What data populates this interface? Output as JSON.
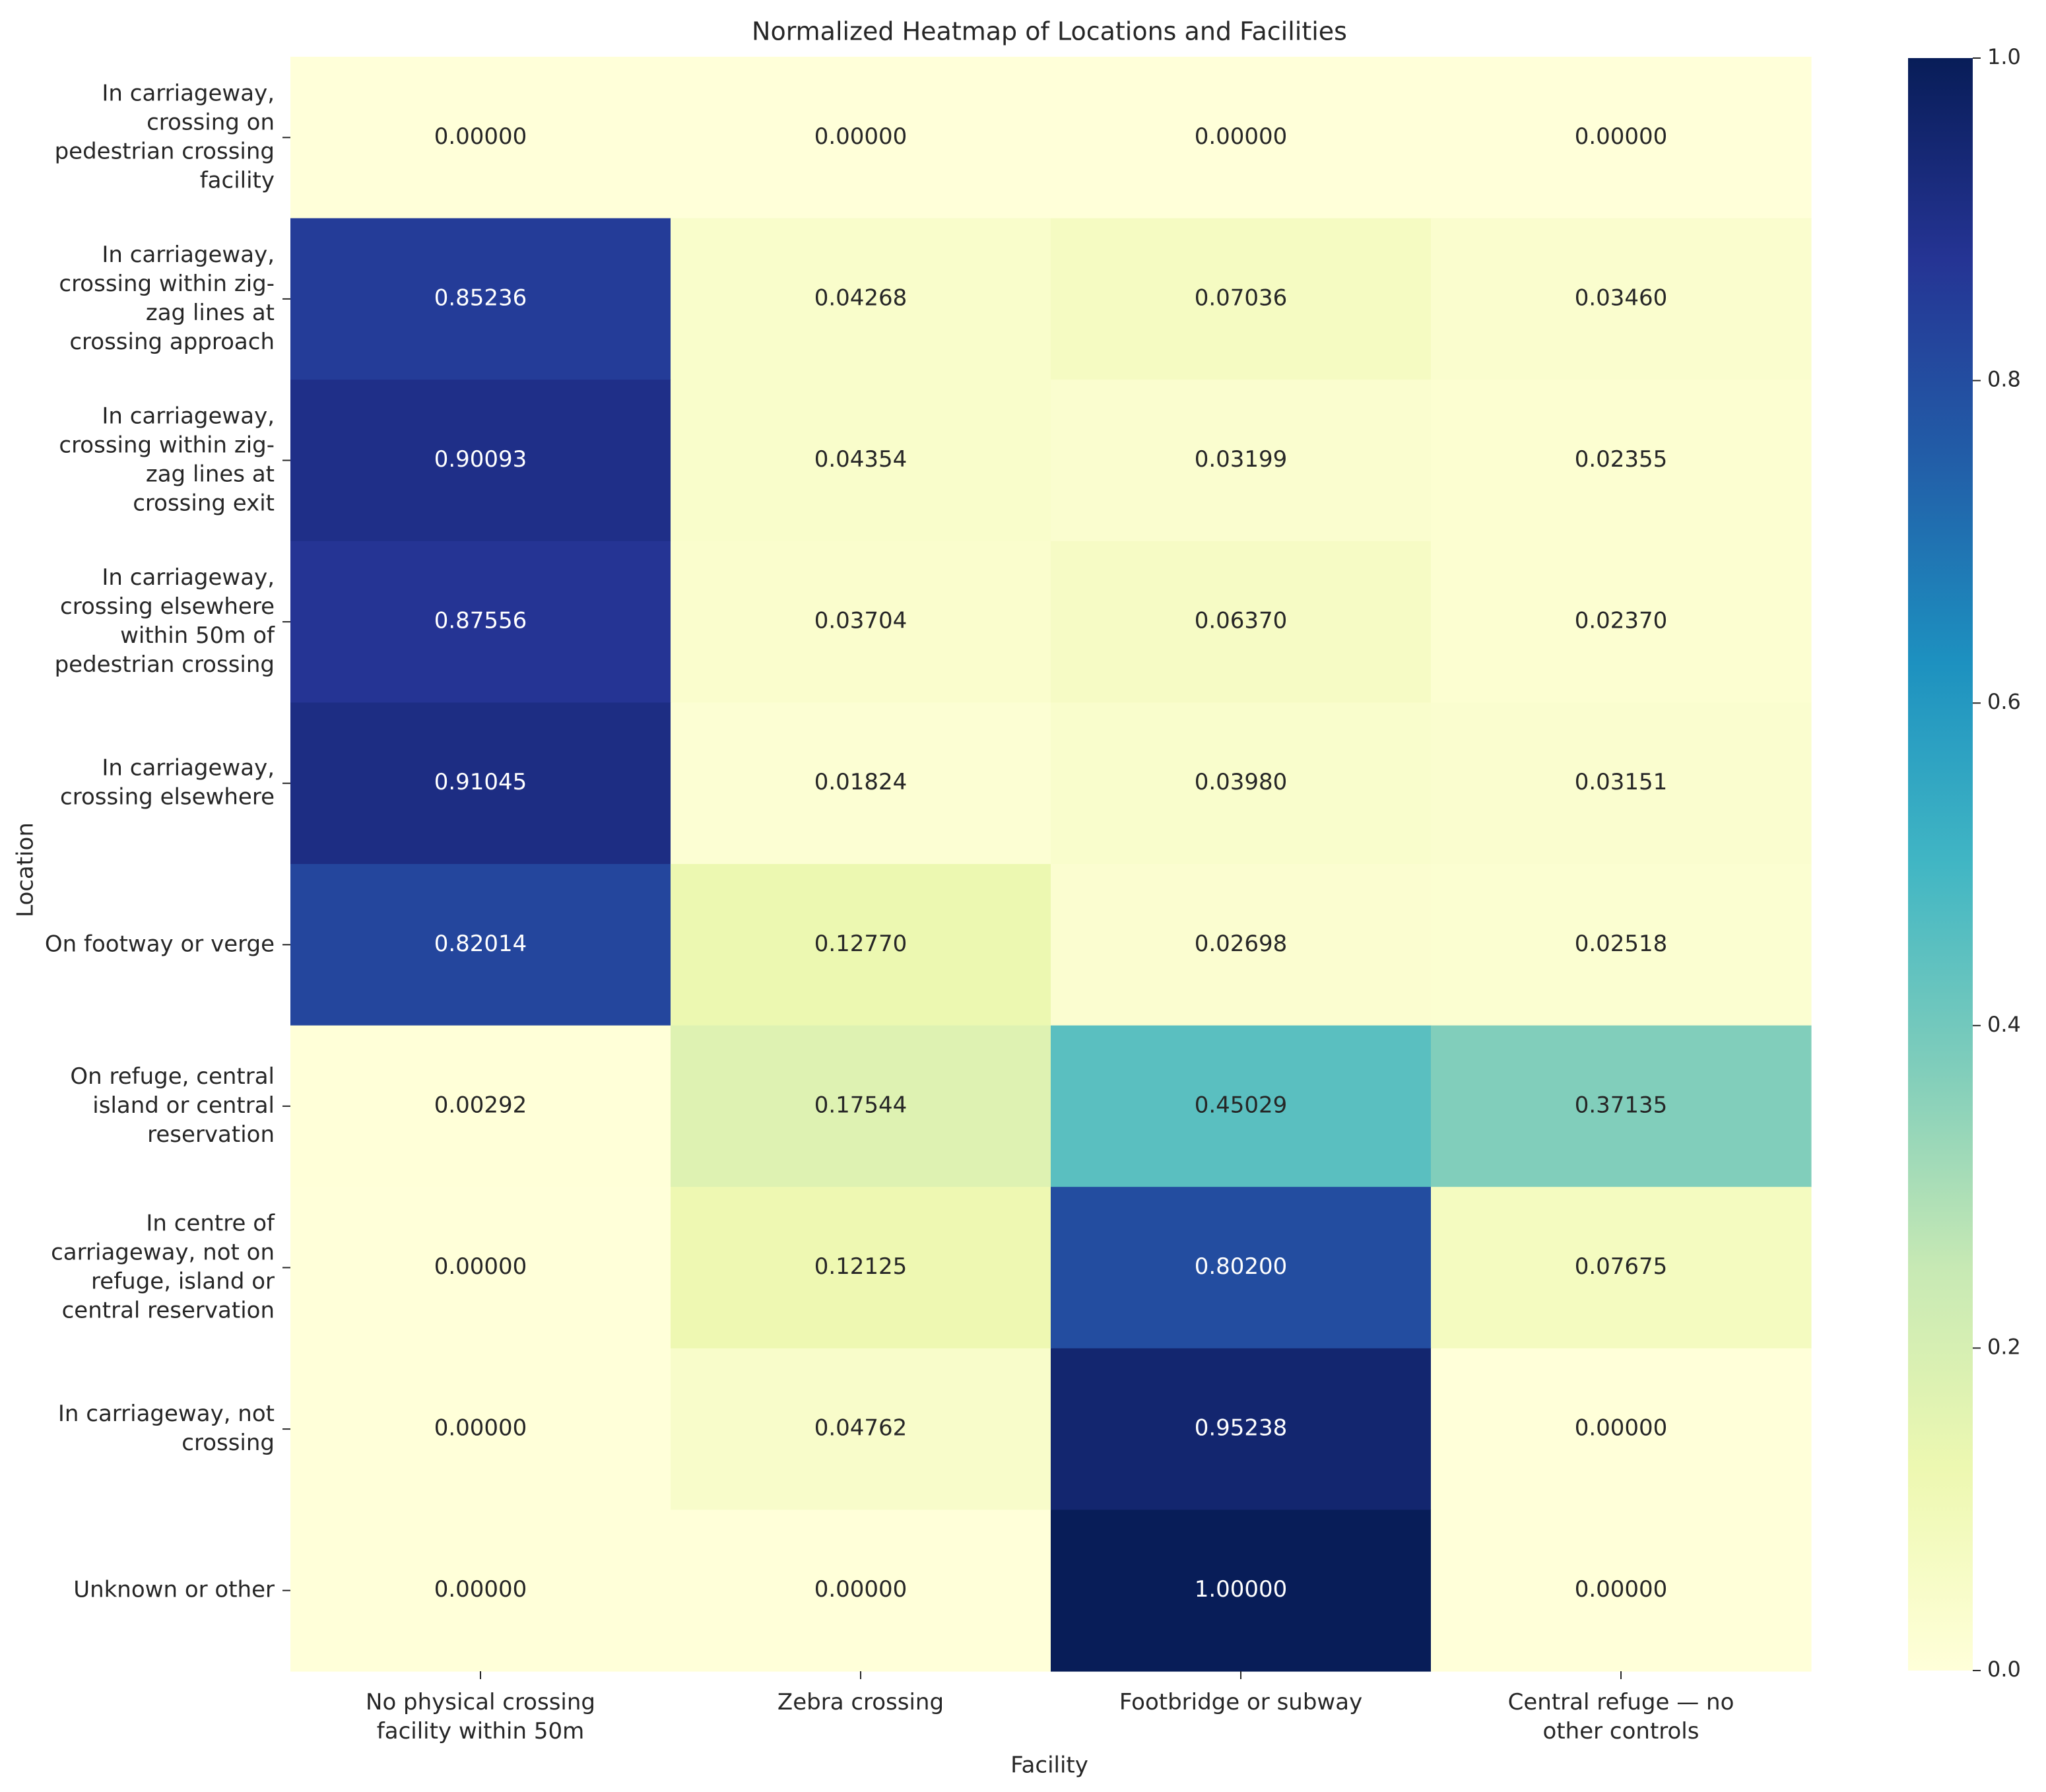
{
  "chart_data": {
    "type": "heatmap",
    "title": "Normalized Heatmap of Locations and Facilities",
    "xlabel": "Facility",
    "ylabel": "Location",
    "columns": [
      [
        "No physical crossing",
        "facility within 50m"
      ],
      [
        "Zebra crossing"
      ],
      [
        "Footbridge or subway"
      ],
      [
        "Central refuge — no",
        "other controls"
      ]
    ],
    "rows": [
      [
        "In carriageway,",
        "crossing on",
        "pedestrian crossing",
        "facility"
      ],
      [
        "In carriageway,",
        "crossing within zig-",
        "zag lines at",
        "crossing approach"
      ],
      [
        "In carriageway,",
        "crossing within zig-",
        "zag lines at",
        "crossing exit"
      ],
      [
        "In carriageway,",
        "crossing elsewhere",
        "within 50m of",
        "pedestrian crossing"
      ],
      [
        "In carriageway,",
        "crossing elsewhere"
      ],
      [
        "On footway or verge"
      ],
      [
        "On refuge, central",
        "island or central",
        "reservation"
      ],
      [
        "In centre of",
        "carriageway, not on",
        "refuge, island or",
        "central reservation"
      ],
      [
        "In carriageway, not",
        "crossing"
      ],
      [
        "Unknown or other"
      ]
    ],
    "values": [
      [
        0.0,
        0.0,
        0.0,
        0.0
      ],
      [
        0.85236,
        0.04268,
        0.07036,
        0.0346
      ],
      [
        0.90093,
        0.04354,
        0.03199,
        0.02355
      ],
      [
        0.87556,
        0.03704,
        0.0637,
        0.0237
      ],
      [
        0.91045,
        0.01824,
        0.0398,
        0.03151
      ],
      [
        0.82014,
        0.1277,
        0.02698,
        0.02518
      ],
      [
        0.00292,
        0.17544,
        0.45029,
        0.37135
      ],
      [
        0.0,
        0.12125,
        0.802,
        0.07675
      ],
      [
        0.0,
        0.04762,
        0.95238,
        0.0
      ],
      [
        0.0,
        0.0,
        1.0,
        0.0
      ]
    ],
    "colormap": "YlGnBu",
    "colorbar": {
      "range": [
        0,
        1
      ],
      "ticks": [
        "0.0",
        "0.2",
        "0.4",
        "0.6",
        "0.8",
        "1.0"
      ]
    },
    "colors": {
      "cmap_stops": [
        "#ffffd9",
        "#edf8b1",
        "#c7e9b4",
        "#7fcdbb",
        "#41b6c4",
        "#1d91c0",
        "#225ea8",
        "#253494",
        "#081d58"
      ],
      "text_dark": "#262626",
      "text_light": "#ffffff"
    }
  }
}
